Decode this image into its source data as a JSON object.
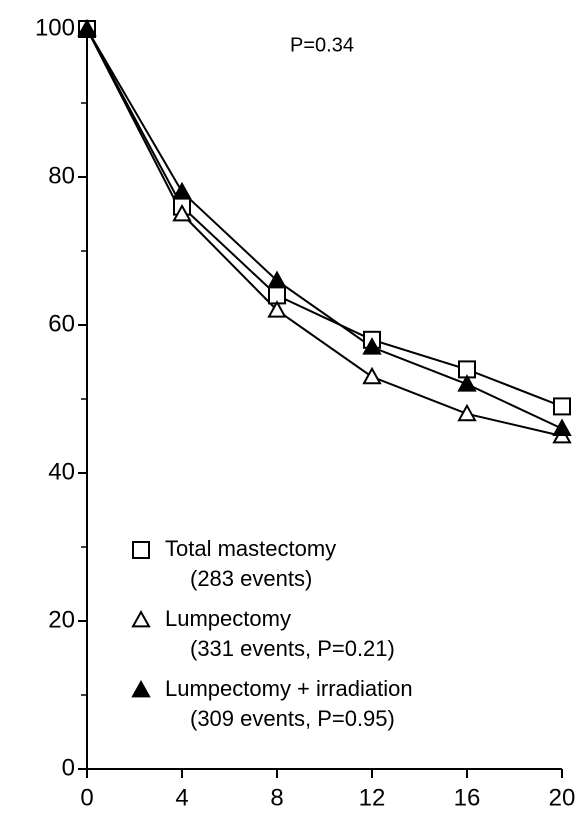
{
  "chart_data": {
    "type": "line",
    "annotation": "P=0.34",
    "x": [
      0,
      4,
      8,
      12,
      16,
      20
    ],
    "series": [
      {
        "name": "Total mastectomy",
        "note": "(283 events)",
        "marker": "square-open",
        "color": "#000000",
        "values": [
          100,
          76,
          64,
          58,
          54,
          49
        ]
      },
      {
        "name": "Lumpectomy",
        "note": "(331 events, P=0.21)",
        "marker": "triangle-open",
        "color": "#000000",
        "values": [
          100,
          75,
          62,
          53,
          48,
          45
        ]
      },
      {
        "name": "Lumpectomy + irradiation",
        "note": "(309 events, P=0.95)",
        "marker": "triangle-filled",
        "color": "#000000",
        "values": [
          100,
          78,
          66,
          57,
          52,
          46
        ]
      }
    ],
    "xlim": [
      0,
      20
    ],
    "xticks": [
      0,
      4,
      8,
      12,
      16,
      20
    ],
    "ylim": [
      0,
      100
    ],
    "yticks": [
      0,
      20,
      40,
      60,
      80,
      100
    ],
    "yminorticks": [
      10,
      30,
      50,
      70,
      90
    ],
    "grid": false
  }
}
